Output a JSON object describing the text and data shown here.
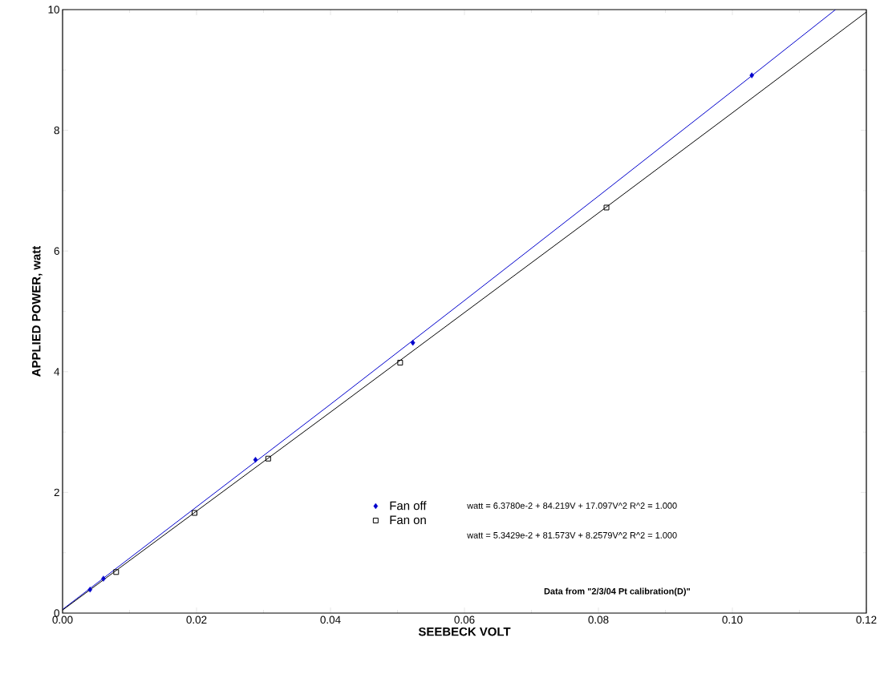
{
  "chart_data": {
    "type": "scatter",
    "xlabel": "SEEBECK VOLT",
    "ylabel": "APPLIED POWER, watt",
    "xlim": [
      0,
      0.12
    ],
    "ylim": [
      0,
      10
    ],
    "xticks": [
      {
        "value": 0,
        "label": "0.00"
      },
      {
        "value": 0.02,
        "label": "0.02"
      },
      {
        "value": 0.04,
        "label": "0.04"
      },
      {
        "value": 0.06,
        "label": "0.06"
      },
      {
        "value": 0.08,
        "label": "0.08"
      },
      {
        "value": 0.1,
        "label": "0.10"
      },
      {
        "value": 0.12,
        "label": "0.12"
      }
    ],
    "yticks": [
      0,
      2,
      4,
      6,
      8,
      10
    ],
    "grid": false,
    "legend": "bottom",
    "series": [
      {
        "name": "Fan off",
        "marker": "diamond",
        "color": "#0000cc",
        "x": [
          0.0041,
          0.0061,
          0.0288,
          0.0523,
          0.1029
        ],
        "values": [
          0.39,
          0.57,
          2.54,
          4.48,
          8.91
        ]
      },
      {
        "name": "Fan on",
        "marker": "square",
        "color": "#000000",
        "x": [
          0.008,
          0.0197,
          0.0307,
          0.0504,
          0.0812
        ],
        "values": [
          0.68,
          1.66,
          2.56,
          4.15,
          6.72
        ]
      },
      {
        "type": "line",
        "color": "#0000cc",
        "x": [
          0,
          0.02,
          0.04,
          0.06,
          0.08,
          0.1,
          0.1154
        ],
        "values": [
          0.06,
          1.76,
          3.46,
          5.18,
          6.91,
          8.65,
          10.0
        ]
      },
      {
        "type": "line",
        "color": "#000000",
        "x": [
          0,
          0.02,
          0.04,
          0.06,
          0.08,
          0.1,
          0.12
        ],
        "values": [
          0.05,
          1.69,
          3.33,
          4.98,
          6.63,
          8.29,
          9.96
        ]
      }
    ],
    "annotations": [
      "watt = 6.3780e-2 + 84.219V + 17.097V^2   R^2 = 1.000",
      "watt = 5.3429e-2 + 81.573V + 8.2579V^2   R^2 = 1.000",
      "**Data from \"2/3/04 Pt calibration(D)\"**"
    ]
  }
}
